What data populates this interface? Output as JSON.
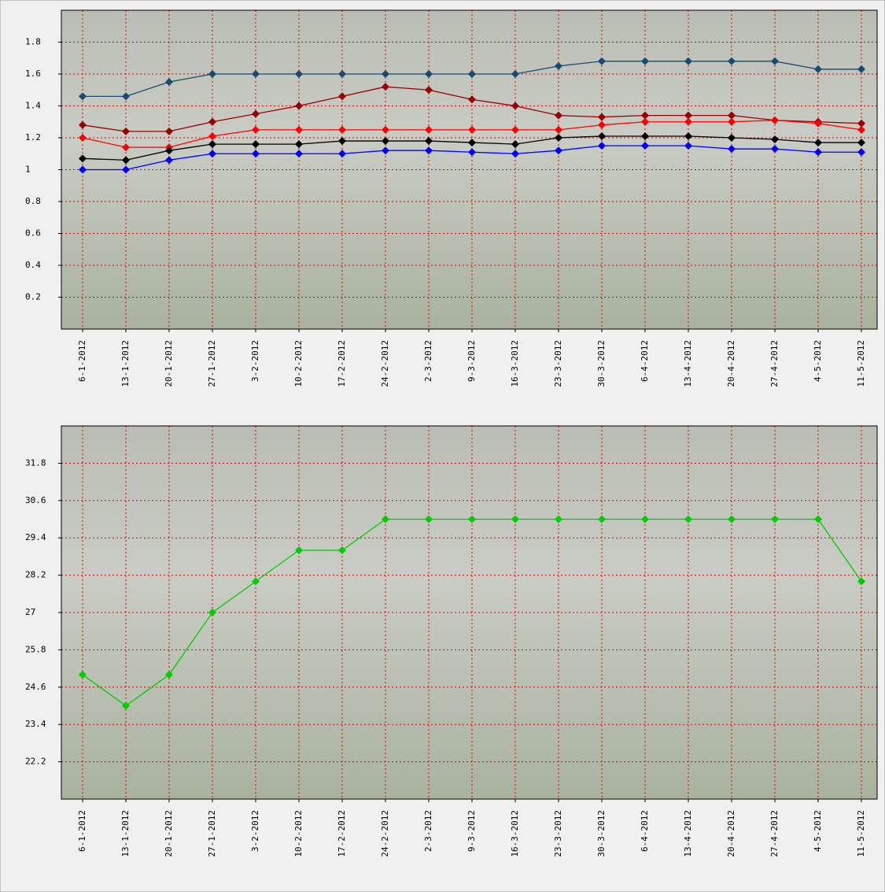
{
  "chart_data": [
    {
      "type": "line",
      "categories": [
        "6-1-2012",
        "13-1-2012",
        "20-1-2012",
        "27-1-2012",
        "3-2-2012",
        "10-2-2012",
        "17-2-2012",
        "24-2-2012",
        "2-3-2012",
        "9-3-2012",
        "16-3-2012",
        "23-3-2012",
        "30-3-2012",
        "6-4-2012",
        "13-4-2012",
        "20-4-2012",
        "27-4-2012",
        "4-5-2012",
        "11-5-2012"
      ],
      "ylim": [
        0,
        2
      ],
      "yticks": [
        0.2,
        0.4,
        0.6,
        0.8,
        1,
        1.2,
        1.4,
        1.6,
        1.8
      ],
      "grid": true,
      "series": [
        {
          "color": "#1a4a72",
          "values": [
            1.46,
            1.46,
            1.55,
            1.6,
            1.6,
            1.6,
            1.6,
            1.6,
            1.6,
            1.6,
            1.6,
            1.65,
            1.68,
            1.68,
            1.68,
            1.68,
            1.68,
            1.63,
            1.63
          ]
        },
        {
          "color": "#990000",
          "values": [
            1.28,
            1.24,
            1.24,
            1.3,
            1.35,
            1.4,
            1.46,
            1.52,
            1.5,
            1.44,
            1.4,
            1.34,
            1.33,
            1.34,
            1.34,
            1.34,
            1.31,
            1.3,
            1.29
          ]
        },
        {
          "color": "#ff0000",
          "values": [
            1.2,
            1.14,
            1.14,
            1.21,
            1.25,
            1.25,
            1.25,
            1.25,
            1.25,
            1.25,
            1.25,
            1.25,
            1.28,
            1.3,
            1.3,
            1.3,
            1.31,
            1.29,
            1.25
          ]
        },
        {
          "color": "#000000",
          "values": [
            1.07,
            1.06,
            1.12,
            1.16,
            1.16,
            1.16,
            1.18,
            1.18,
            1.18,
            1.17,
            1.16,
            1.2,
            1.21,
            1.21,
            1.21,
            1.2,
            1.19,
            1.17,
            1.17
          ]
        },
        {
          "color": "#0000ff",
          "values": [
            1,
            1,
            1.06,
            1.1,
            1.1,
            1.1,
            1.1,
            1.12,
            1.12,
            1.11,
            1.1,
            1.12,
            1.15,
            1.15,
            1.15,
            1.13,
            1.13,
            1.11,
            1.11
          ]
        }
      ]
    },
    {
      "type": "line",
      "categories": [
        "6-1-2012",
        "13-1-2012",
        "20-1-2012",
        "27-1-2012",
        "3-2-2012",
        "10-2-2012",
        "17-2-2012",
        "24-2-2012",
        "2-3-2012",
        "9-3-2012",
        "16-3-2012",
        "23-3-2012",
        "30-3-2012",
        "6-4-2012",
        "13-4-2012",
        "20-4-2012",
        "27-4-2012",
        "4-5-2012",
        "11-5-2012"
      ],
      "ylim": [
        21,
        33
      ],
      "yticks": [
        22.2,
        23.4,
        24.6,
        25.8,
        27,
        28.2,
        29.4,
        30.6,
        31.8
      ],
      "grid": true,
      "series": [
        {
          "color": "#00cc00",
          "values": [
            25,
            24,
            25,
            27,
            28,
            29,
            29,
            30,
            30,
            30,
            30,
            30,
            30,
            30,
            30,
            30,
            30,
            30,
            28
          ]
        }
      ]
    }
  ]
}
